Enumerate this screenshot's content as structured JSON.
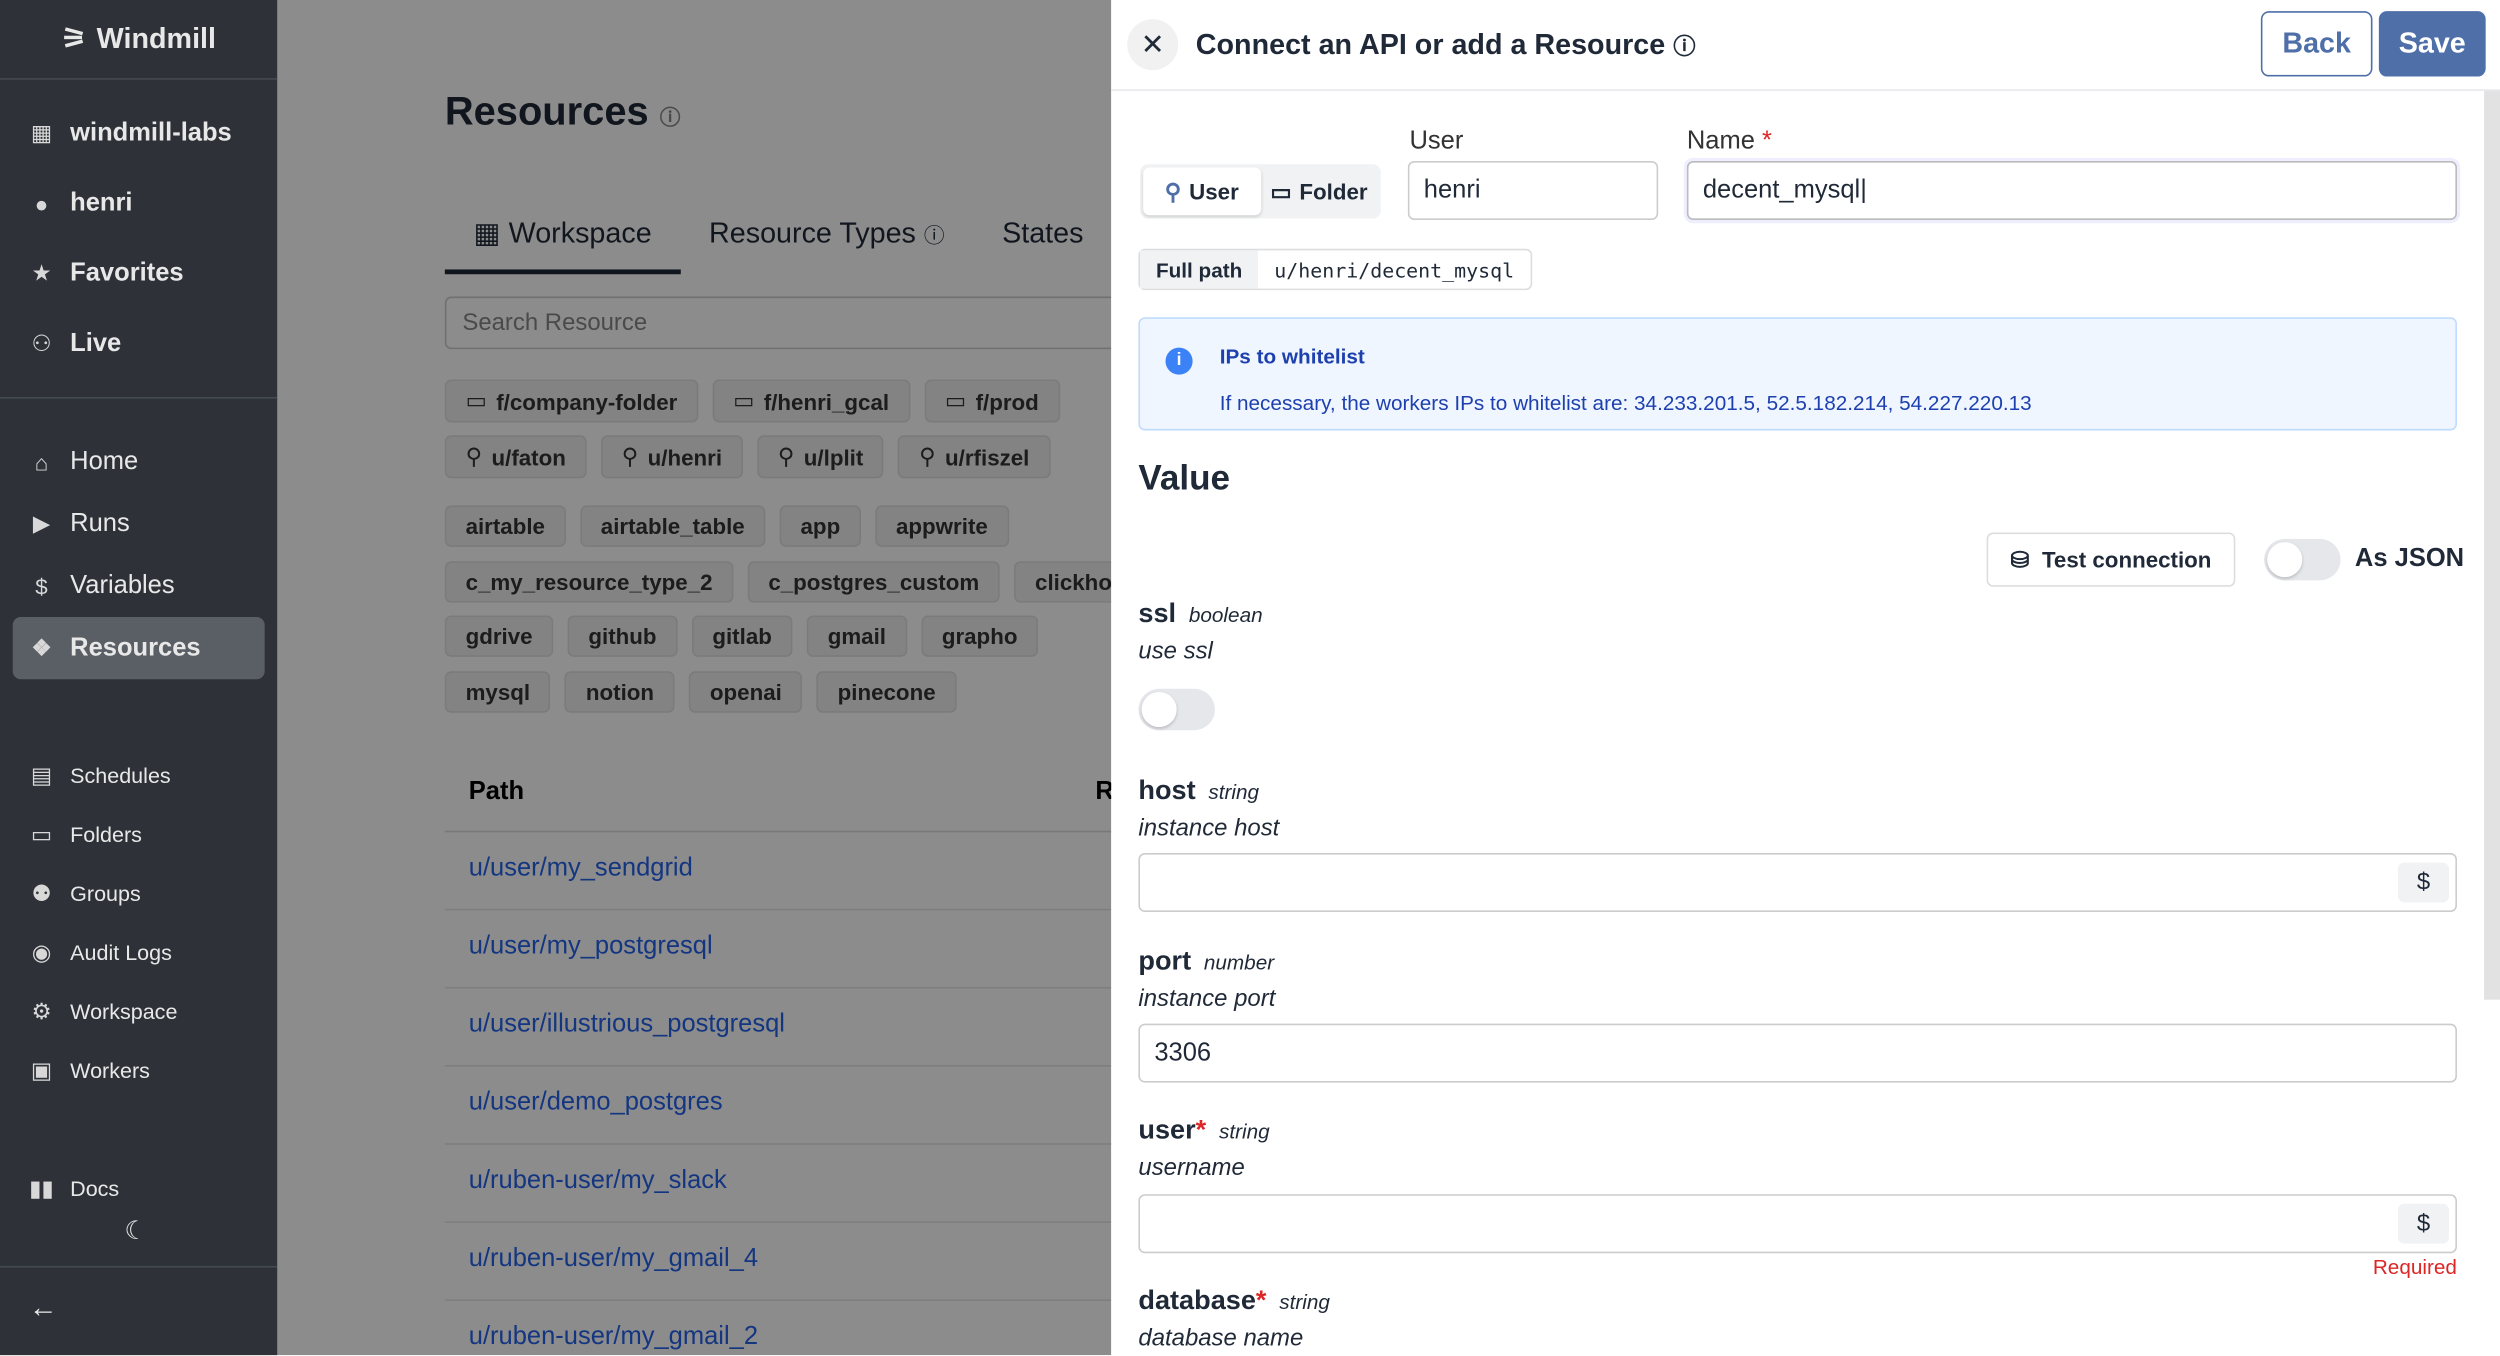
{
  "sidebar": {
    "logo": "Windmill",
    "workspace": "windmill-labs",
    "user": "henri",
    "top": [
      {
        "label": "Favorites",
        "icon": "star-icon"
      },
      {
        "label": "Live",
        "icon": "users-icon"
      }
    ],
    "nav": [
      {
        "label": "Home",
        "icon": "home-icon"
      },
      {
        "label": "Runs",
        "icon": "play-icon"
      },
      {
        "label": "Variables",
        "icon": "dollar-icon"
      },
      {
        "label": "Resources",
        "icon": "boxes-icon"
      }
    ],
    "secondary": [
      {
        "label": "Schedules",
        "icon": "calendar-icon"
      },
      {
        "label": "Folders",
        "icon": "folder-icon"
      },
      {
        "label": "Groups",
        "icon": "group-icon"
      },
      {
        "label": "Audit Logs",
        "icon": "eye-icon"
      },
      {
        "label": "Workspace",
        "icon": "gear-icon"
      },
      {
        "label": "Workers",
        "icon": "bot-icon"
      }
    ],
    "docs": "Docs"
  },
  "main": {
    "title": "Resources",
    "tabs": [
      "Workspace",
      "Resource Types",
      "States"
    ],
    "search_placeholder": "Search Resource",
    "folders": [
      "f/company-folder",
      "f/henri_gcal",
      "f/prod"
    ],
    "users": [
      "u/faton",
      "u/henri",
      "u/lplit",
      "u/rfiszel"
    ],
    "types": [
      [
        "airtable",
        "airtable_table",
        "app",
        "appwrite"
      ],
      [
        "c_my_resource_type_2",
        "c_postgres_custom",
        "clickho"
      ],
      [
        "gdrive",
        "github",
        "gitlab",
        "gmail",
        "grapho"
      ],
      [
        "mysql",
        "notion",
        "openai",
        "pinecone"
      ]
    ],
    "table": {
      "headers": [
        "Path",
        "R"
      ],
      "rows": [
        "u/user/my_sendgrid",
        "u/user/my_postgresql",
        "u/user/illustrious_postgresql",
        "u/user/demo_postgres",
        "u/ruben-user/my_slack",
        "u/ruben-user/my_gmail_4",
        "u/ruben-user/my_gmail_2"
      ]
    }
  },
  "drawer": {
    "title": "Connect an API or add a Resource",
    "back": "Back",
    "save": "Save",
    "owner": {
      "user": "User",
      "folder": "Folder",
      "selected": "User"
    },
    "user_label": "User",
    "user_value": "henri",
    "name_label": "Name",
    "name_value": "decent_mysql",
    "required_mark": "*",
    "full_path_label": "Full path",
    "full_path": "u/henri/decent_mysql",
    "alert": {
      "title": "IPs to whitelist",
      "body": "If necessary, the workers IPs to whitelist are: 34.233.201.5, 52.5.182.214, 54.227.220.13"
    },
    "value_title": "Value",
    "test_connection": "Test connection",
    "as_json": "As JSON",
    "as_json_on": false,
    "fields": [
      {
        "name": "ssl",
        "type": "boolean",
        "desc": "use ssl",
        "value": false
      },
      {
        "name": "host",
        "type": "string",
        "desc": "instance host",
        "value": ""
      },
      {
        "name": "port",
        "type": "number",
        "desc": "instance port",
        "value": "3306"
      },
      {
        "name": "user",
        "type": "string",
        "desc": "username",
        "value": "",
        "required": true,
        "error": "Required"
      },
      {
        "name": "database",
        "type": "string",
        "desc": "database name",
        "required": true
      }
    ]
  },
  "colors": {
    "primary": "#4f6fa8",
    "link": "#2563eb",
    "required": "#dc2626",
    "sidebar": "#2e3238"
  }
}
